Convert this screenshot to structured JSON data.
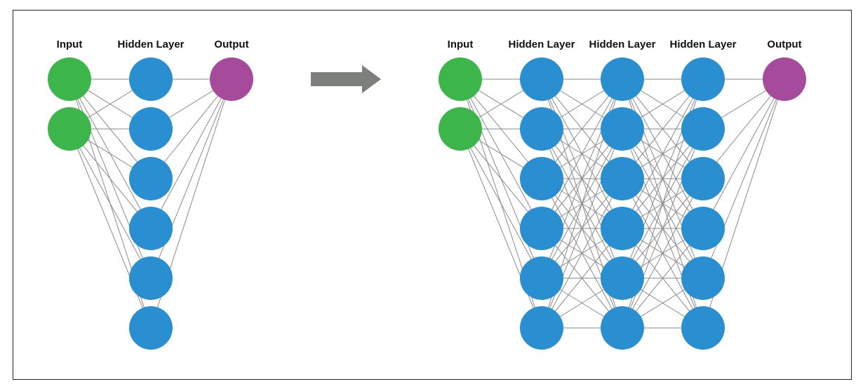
{
  "colors": {
    "input": "#3cb54a",
    "hidden": "#2a8fd0",
    "output": "#a64a9b",
    "edge": "#8a8a8a",
    "arrow": "#7d7f7c",
    "border": "#222222"
  },
  "networks": [
    {
      "id": "shallow",
      "layers": [
        {
          "label": "Input",
          "role": "input",
          "nodes": 2
        },
        {
          "label": "Hidden Layer",
          "role": "hidden",
          "nodes": 6
        },
        {
          "label": "Output",
          "role": "output",
          "nodes": 1
        }
      ]
    },
    {
      "id": "deep",
      "layers": [
        {
          "label": "Input",
          "role": "input",
          "nodes": 2
        },
        {
          "label": "Hidden Layer",
          "role": "hidden",
          "nodes": 6
        },
        {
          "label": "Hidden Layer",
          "role": "hidden",
          "nodes": 6
        },
        {
          "label": "Hidden Layer",
          "role": "hidden",
          "nodes": 6
        },
        {
          "label": "Output",
          "role": "output",
          "nodes": 1
        }
      ]
    }
  ],
  "transition": {
    "icon": "right-arrow-icon"
  }
}
